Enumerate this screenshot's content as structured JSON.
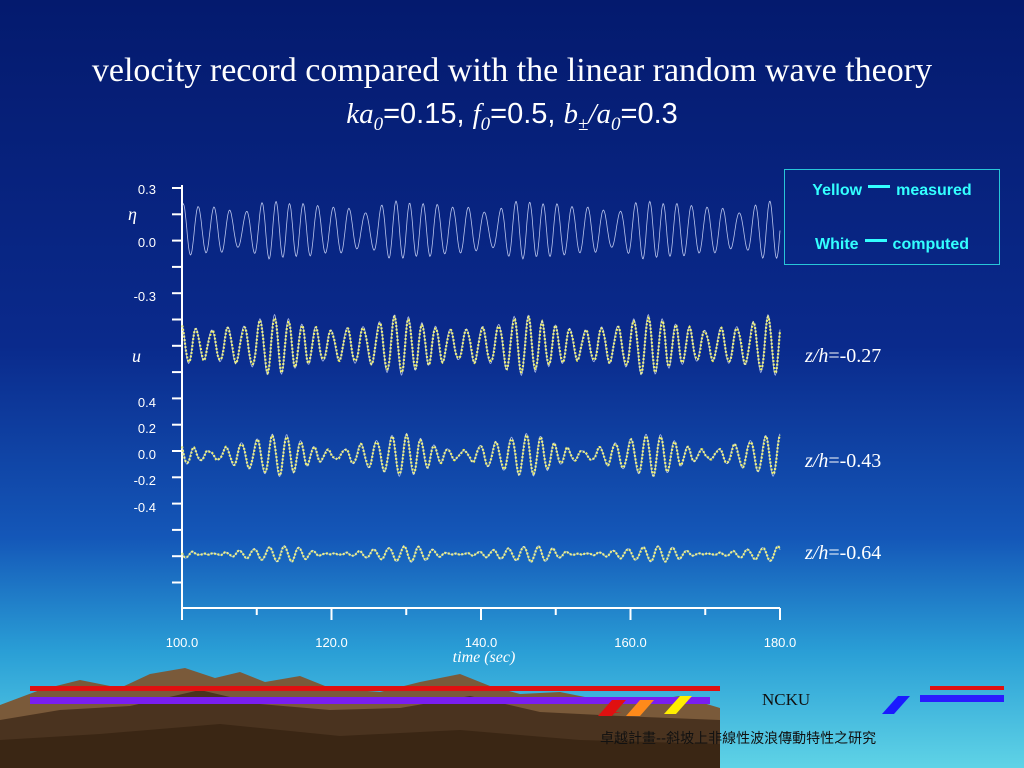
{
  "title": "velocity record compared with the linear random wave theory",
  "subtitle": {
    "ka_label": "ka",
    "ka_sub": "0",
    "ka_value": "=0.15, ",
    "f_label": "f",
    "f_sub": "0",
    "f_value": "=0.5, ",
    "b_label": "b",
    "b_sub": "±",
    "slash": "/",
    "a_label": "a",
    "a_sub": "0",
    "ba_value": "=0.3"
  },
  "legend": {
    "yellow_word": "Yellow",
    "yellow_desc": "measured",
    "white_word": "White",
    "white_desc": "computed"
  },
  "labels": {
    "eta_symbol": "η",
    "u_symbol": "u",
    "depth_1": "=-0.27",
    "depth_2": "=-0.43",
    "depth_3": "=-0.64",
    "depth_prefix_z": "z",
    "depth_prefix_h": "/h"
  },
  "footer": {
    "ncku": "NCKU",
    "project": "卓越計畫--斜坡上非線性波浪傳動特性之研究"
  },
  "colors": {
    "measured": "#f2f24a",
    "computed": "#d8e0ff",
    "legend_text": "#33ffff",
    "axis": "#ffffff"
  },
  "chart_data": {
    "type": "line",
    "xlabel": "time (sec)",
    "xlim": [
      100.0,
      180.0
    ],
    "x_ticks": [
      "100.0",
      "120.0",
      "140.0",
      "160.0",
      "180.0"
    ],
    "eta_ticks": [
      "0.3",
      "0.0",
      "-0.3"
    ],
    "u_ticks": [
      "0.4",
      "0.2",
      "0.0",
      "-0.2",
      "-0.4"
    ],
    "panels": [
      {
        "name": "eta",
        "ylim": [
          -0.3,
          0.3
        ],
        "series": [
          {
            "role": "computed"
          }
        ]
      },
      {
        "name": "z/h=-0.27",
        "ylim": [
          -0.4,
          0.4
        ],
        "series": [
          {
            "role": "measured"
          },
          {
            "role": "computed"
          }
        ]
      },
      {
        "name": "z/h=-0.43",
        "ylim": [
          -0.4,
          0.4
        ],
        "series": [
          {
            "role": "measured"
          },
          {
            "role": "computed"
          }
        ]
      },
      {
        "name": "z/h=-0.64",
        "ylim": [
          -0.4,
          0.4
        ],
        "series": [
          {
            "role": "measured"
          },
          {
            "role": "computed"
          }
        ]
      }
    ]
  }
}
